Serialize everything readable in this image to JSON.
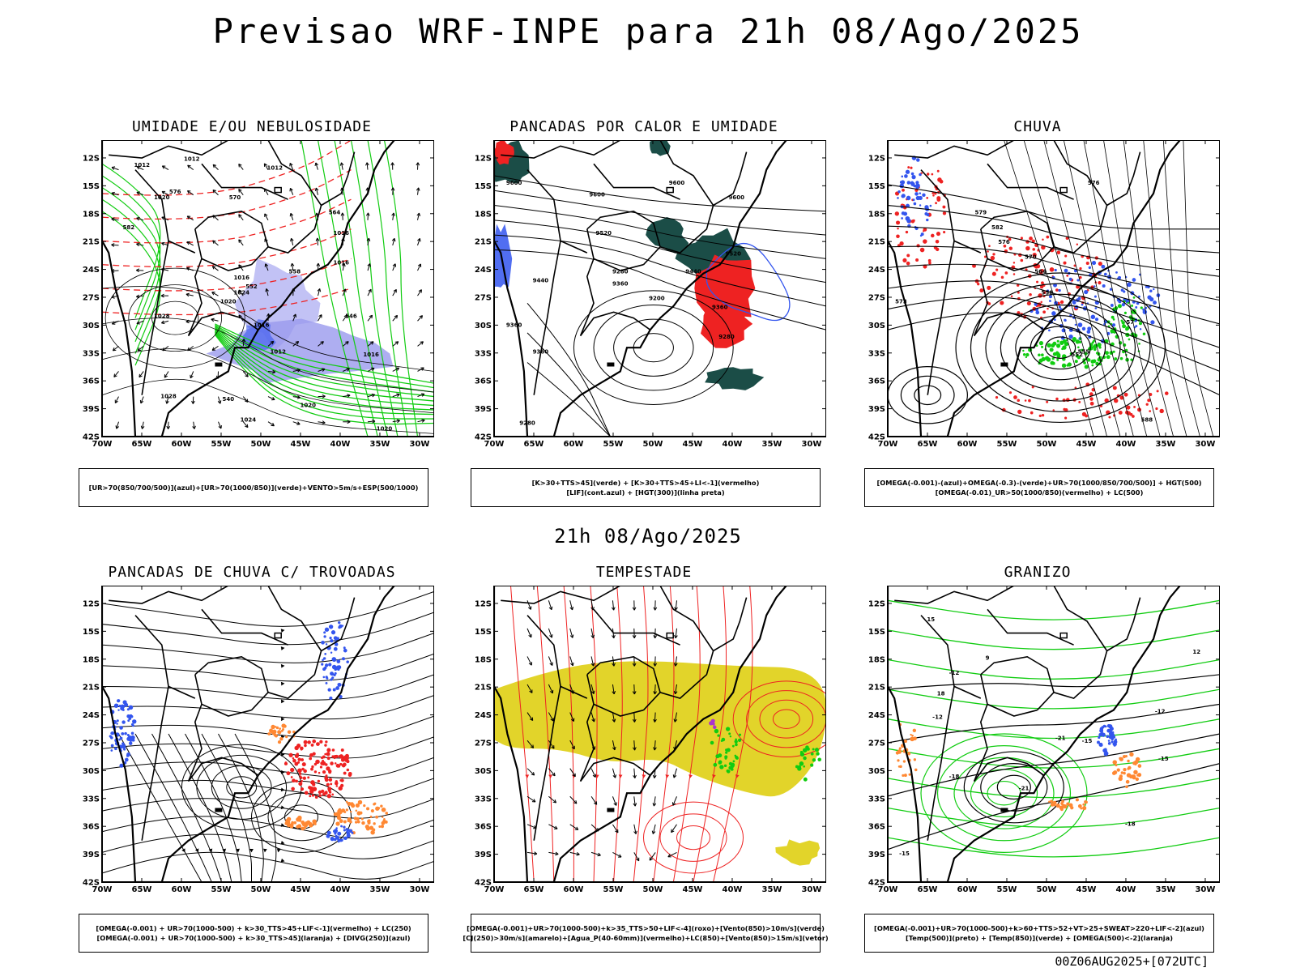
{
  "header": {
    "title": "Previsao WRF-INPE  para 21h 08/Ago/2025"
  },
  "mid_title": "21h 08/Ago/2025",
  "footer": "00Z06AUG2025+[072UTC]",
  "axes": {
    "lat_labels": [
      "12S",
      "15S",
      "18S",
      "21S",
      "24S",
      "27S",
      "30S",
      "33S",
      "36S",
      "39S",
      "42S"
    ],
    "lon_labels": [
      "70W",
      "65W",
      "60W",
      "55W",
      "50W",
      "45W",
      "40W",
      "35W",
      "30W"
    ]
  },
  "colors": {
    "blue": "#3355ee",
    "green": "#11cc11",
    "red": "#ee2222",
    "orange": "#ff8833",
    "yellow": "#e2d42a",
    "purple": "#aa33cc",
    "darkteal": "#1b4d47",
    "lavender": "#9a9aee"
  },
  "panels": [
    {
      "id": "umidade",
      "title": "UMIDADE E/OU NEBULOSIDADE",
      "legend": [
        "[UR>70(850/700/500)](azul)+[UR>70(1000/850)](verde)+VENTO>5m/s+ESP(500/1000)"
      ]
    },
    {
      "id": "pancadas-calor",
      "title": "PANCADAS POR CALOR E UMIDADE",
      "legend": [
        "[K>30+TTS>45](verde)  +  [K>30+TTS>45+LI<-1](vermelho)",
        "[LIF](cont.azul)  +  [HGT(300)](linha preta)"
      ]
    },
    {
      "id": "chuva",
      "title": "CHUVA",
      "legend": [
        "[OMEGA(-0.001)-(azul)+OMEGA(-0.3)-(verde)+UR>70(1000/850/700/500)]  +  HGT(500)",
        "[OMEGA(-0.01)_UR>50(1000/850)(vermelho)  +  LC(500)"
      ]
    },
    {
      "id": "trovoadas",
      "title": "PANCADAS DE CHUVA C/ TROVOADAS",
      "legend": [
        "[OMEGA(-0.001)  +  UR>70(1000-500)  +  k>30_TTS>45+LIF<-1](vermelho)  +  LC(250)",
        "[OMEGA(-0.001)  +  UR>70(1000-500)  +  k>30_TTS>45](laranja)  +  [DIVG(250)](azul)"
      ]
    },
    {
      "id": "tempestade",
      "title": "TEMPESTADE",
      "legend": [
        "[OMEGA(-0.001)+UR>70(1000-500)+k>35_TTS>50+LIF<-4](roxo)+[Vento(850)>10m/s](verde)",
        "[CJ(250)>30m/s](amarelo)+[Agua_P(40-60mm)](vermelho)+LC(850)+[Vento(850)>15m/s](vetor)"
      ]
    },
    {
      "id": "granizo",
      "title": "GRANIZO",
      "legend": [
        "[OMEGA(-0.001)+UR>70(1000-500)+k>60+TTS>52+VT>25+SWEAT>220+LIF<-2](azul)",
        "[Temp(500)](preto)  +  [Temp(850)](verde)  +  [OMEGA(500)<-2](laranja)"
      ]
    }
  ],
  "contour_labels": {
    "umidade": [
      "1012",
      "1012",
      "1012",
      "1016",
      "1020",
      "1016",
      "1016",
      "1020",
      "1024",
      "1028",
      "1016",
      "1012",
      "1016",
      "1020",
      "1028",
      "1024",
      "1020",
      "576",
      "570",
      "564",
      "558",
      "552",
      "546",
      "540",
      "582"
    ],
    "pancadas-calor": [
      "9600",
      "9600",
      "9600",
      "9600",
      "9520",
      "9520",
      "9440",
      "9440",
      "9360",
      "9360",
      "9280",
      "9280",
      "9200",
      "9360",
      "9360",
      "9280"
    ],
    "chuva": [
      "582",
      "576",
      "570",
      "564",
      "558",
      "552",
      "573",
      "579",
      "576",
      "555",
      "57",
      "588"
    ],
    "granizo": [
      "-12",
      "-12",
      "-12",
      "-15",
      "-15",
      "-18",
      "-18",
      "-21",
      "-21",
      "-15",
      "12",
      "15",
      "18",
      "9"
    ]
  }
}
